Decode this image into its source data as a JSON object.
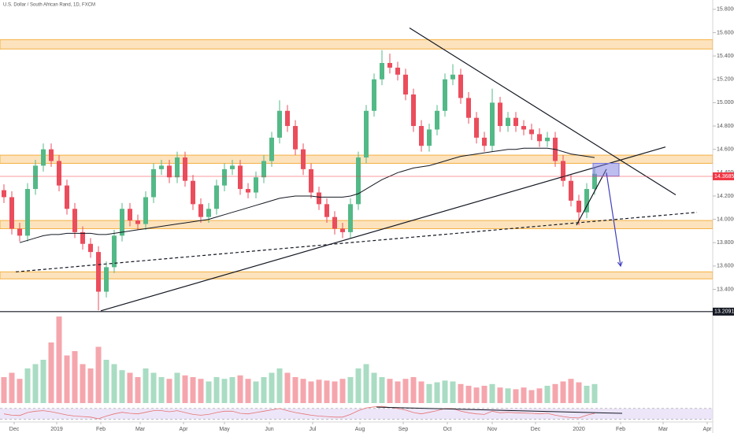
{
  "chart_data": {
    "type": "candlestick",
    "title": "U.S. Dollar / South African Rand, 1D, FXCM",
    "xlim": [
      -0.5,
      90.5
    ],
    "ylim": [
      13.1,
      15.9
    ],
    "yticks": [
      {
        "value": 13.4,
        "label": "13.40000"
      },
      {
        "value": 13.6,
        "label": "13.60000"
      },
      {
        "value": 13.8,
        "label": "13.80000"
      },
      {
        "value": 14,
        "label": "14.00000"
      },
      {
        "value": 14.2,
        "label": "14.20000"
      },
      {
        "value": 14.4,
        "label": "14.40000"
      },
      {
        "value": 14.6,
        "label": "14.60000"
      },
      {
        "value": 14.8,
        "label": "14.80000"
      },
      {
        "value": 15,
        "label": "15.00000"
      },
      {
        "value": 15.2,
        "label": "15.20000"
      },
      {
        "value": 15.4,
        "label": "15.40000"
      },
      {
        "value": 15.6,
        "label": "15.60000"
      },
      {
        "value": 15.8,
        "label": "15.80000"
      }
    ],
    "xticks": [
      {
        "value": 1.3,
        "label": "Dec"
      },
      {
        "value": 6.7,
        "label": "2019"
      },
      {
        "value": 12.3,
        "label": "Feb"
      },
      {
        "value": 17.3,
        "label": "Mar"
      },
      {
        "value": 22.8,
        "label": "Apr"
      },
      {
        "value": 28,
        "label": "May"
      },
      {
        "value": 33.7,
        "label": "Jun"
      },
      {
        "value": 39.2,
        "label": "Jul"
      },
      {
        "value": 45.2,
        "label": "Aug"
      },
      {
        "value": 50.7,
        "label": "Sep"
      },
      {
        "value": 56.3,
        "label": "Oct"
      },
      {
        "value": 62,
        "label": "Nov"
      },
      {
        "value": 67.5,
        "label": "Dec"
      },
      {
        "value": 73,
        "label": "2020"
      },
      {
        "value": 78.3,
        "label": "Feb"
      },
      {
        "value": 83.7,
        "label": "Mar"
      },
      {
        "value": 89.3,
        "label": "Apr"
      }
    ],
    "up_color": "#53b987",
    "down_color": "#eb4d5c",
    "series": {
      "open": [
        14.25,
        14.19,
        13.92,
        13.86,
        14.26,
        14.46,
        14.6,
        14.5,
        14.29,
        14.09,
        13.89,
        13.79,
        13.72,
        13.38,
        13.59,
        13.86,
        14.09,
        13.99,
        13.96,
        14.19,
        14.43,
        14.46,
        14.36,
        14.53,
        14.33,
        14.13,
        14.02,
        14.09,
        14.29,
        14.43,
        14.46,
        14.26,
        14.23,
        14.36,
        14.5,
        14.7,
        14.93,
        14.8,
        14.6,
        14.43,
        14.23,
        14.13,
        14.02,
        13.92,
        13.89,
        14.13,
        14.53,
        14.93,
        15.2,
        15.34,
        15.3,
        15.24,
        15.07,
        14.8,
        14.63,
        14.77,
        14.93,
        15.2,
        15.24,
        15.04,
        14.87,
        14.7,
        14.63,
        15.0,
        14.8,
        14.87,
        14.8,
        14.77,
        14.73,
        14.67,
        14.7,
        14.5,
        14.33,
        14.16,
        14.06,
        14.26
      ],
      "high": [
        14.3,
        14.24,
        13.97,
        14.31,
        14.51,
        14.65,
        14.65,
        14.55,
        14.34,
        14.14,
        13.94,
        13.84,
        13.77,
        13.64,
        13.91,
        14.14,
        14.14,
        14.04,
        14.24,
        14.48,
        14.51,
        14.51,
        14.58,
        14.58,
        14.38,
        14.18,
        14.14,
        14.34,
        14.48,
        14.51,
        14.51,
        14.31,
        14.41,
        14.55,
        14.75,
        15.02,
        14.98,
        14.85,
        14.65,
        14.48,
        14.28,
        14.18,
        14.07,
        13.97,
        14.18,
        14.58,
        14.98,
        15.25,
        15.45,
        15.42,
        15.35,
        15.29,
        15.12,
        14.85,
        14.82,
        14.98,
        15.25,
        15.33,
        15.29,
        15.09,
        14.92,
        14.75,
        15.12,
        15.05,
        14.92,
        14.92,
        14.85,
        14.82,
        14.78,
        14.75,
        14.75,
        14.55,
        14.38,
        14.21,
        14.31,
        14.44
      ],
      "low": [
        14.14,
        13.87,
        13.81,
        13.81,
        14.21,
        14.41,
        14.45,
        14.24,
        14.04,
        13.84,
        13.74,
        13.67,
        13.22,
        13.33,
        13.54,
        13.81,
        13.94,
        13.91,
        13.91,
        14.14,
        14.38,
        14.31,
        14.31,
        14.28,
        14.08,
        13.97,
        13.97,
        14.04,
        14.24,
        14.38,
        14.21,
        14.18,
        14.18,
        14.31,
        14.45,
        14.65,
        14.75,
        14.55,
        14.38,
        14.18,
        14.08,
        13.97,
        13.87,
        13.84,
        13.84,
        14.08,
        14.48,
        14.88,
        15.15,
        15.25,
        15.19,
        15.02,
        14.75,
        14.58,
        14.58,
        14.72,
        14.88,
        15.15,
        14.99,
        14.82,
        14.65,
        14.58,
        14.58,
        14.75,
        14.75,
        14.75,
        14.72,
        14.68,
        14.62,
        14.62,
        14.45,
        14.28,
        14.11,
        13.95,
        14.01,
        14.21
      ],
      "close": [
        14.19,
        13.92,
        13.86,
        14.26,
        14.46,
        14.6,
        14.5,
        14.29,
        14.09,
        13.89,
        13.79,
        13.72,
        13.38,
        13.59,
        13.86,
        14.09,
        13.99,
        13.96,
        14.19,
        14.43,
        14.46,
        14.36,
        14.53,
        14.33,
        14.13,
        14.02,
        14.09,
        14.29,
        14.43,
        14.46,
        14.26,
        14.23,
        14.36,
        14.5,
        14.7,
        14.93,
        14.8,
        14.6,
        14.43,
        14.23,
        14.13,
        14.02,
        13.92,
        13.89,
        14.13,
        14.53,
        14.93,
        15.2,
        15.34,
        15.3,
        15.24,
        15.07,
        14.8,
        14.63,
        14.77,
        14.93,
        15.2,
        15.24,
        15.04,
        14.87,
        14.7,
        14.63,
        15.0,
        14.8,
        14.87,
        14.8,
        14.77,
        14.73,
        14.67,
        14.7,
        14.5,
        14.33,
        14.16,
        14.06,
        14.26,
        14.39
      ]
    },
    "ma": {
      "color": "#131722",
      "values": [
        null,
        null,
        13.8,
        13.82,
        13.84,
        13.86,
        13.87,
        13.87,
        13.88,
        13.88,
        13.88,
        13.88,
        13.87,
        13.87,
        13.88,
        13.89,
        13.9,
        13.91,
        13.92,
        13.93,
        13.94,
        13.95,
        13.96,
        13.97,
        13.98,
        13.99,
        14.0,
        14.02,
        14.04,
        14.06,
        14.08,
        14.1,
        14.12,
        14.14,
        14.16,
        14.18,
        14.19,
        14.2,
        14.2,
        14.2,
        14.19,
        14.19,
        14.19,
        14.19,
        14.2,
        14.22,
        14.26,
        14.3,
        14.34,
        14.37,
        14.4,
        14.42,
        14.44,
        14.45,
        14.46,
        14.48,
        14.5,
        14.52,
        14.54,
        14.55,
        14.56,
        14.57,
        14.58,
        14.59,
        14.6,
        14.6,
        14.61,
        14.61,
        14.61,
        14.61,
        14.6,
        14.58,
        14.56,
        14.55,
        14.54,
        14.53
      ]
    },
    "volume": {
      "ylim": [
        0,
        120
      ],
      "values": [
        30,
        35,
        28,
        40,
        45,
        50,
        70,
        100,
        55,
        60,
        45,
        40,
        65,
        50,
        45,
        38,
        35,
        30,
        40,
        35,
        30,
        28,
        35,
        32,
        30,
        28,
        25,
        30,
        28,
        30,
        32,
        28,
        25,
        30,
        35,
        40,
        35,
        30,
        28,
        25,
        27,
        26,
        25,
        28,
        30,
        40,
        45,
        35,
        30,
        28,
        25,
        28,
        30,
        25,
        22,
        24,
        26,
        25,
        22,
        20,
        18,
        20,
        22,
        18,
        17,
        16,
        18,
        15,
        17,
        20,
        22,
        25,
        28,
        24,
        20,
        22
      ]
    },
    "rsi": {
      "ylim": [
        20,
        90
      ],
      "band": [
        30,
        70
      ],
      "color": "#e57373",
      "values": [
        50,
        45,
        44,
        55,
        60,
        62,
        58,
        52,
        46,
        42,
        40,
        38,
        32,
        42,
        50,
        56,
        52,
        50,
        56,
        62,
        62,
        58,
        62,
        55,
        48,
        45,
        48,
        55,
        60,
        60,
        52,
        50,
        55,
        60,
        65,
        70,
        62,
        55,
        50,
        45,
        42,
        40,
        38,
        38,
        48,
        62,
        72,
        76,
        78,
        74,
        70,
        64,
        55,
        50,
        56,
        62,
        70,
        70,
        60,
        54,
        50,
        48,
        60,
        54,
        56,
        54,
        53,
        52,
        50,
        52,
        45,
        40,
        36,
        35,
        45,
        52
      ],
      "trendline": [
        [
          47.3,
          75
        ],
        [
          78.5,
          52
        ]
      ]
    },
    "zone_color": "#f5b041",
    "zones": [
      [
        15.54,
        15.46
      ],
      [
        14.55,
        14.48
      ],
      [
        13.99,
        13.92
      ],
      [
        13.55,
        13.49
      ]
    ],
    "levels": [
      {
        "value": 13.20915,
        "label": "13.20915",
        "color": "#131722"
      },
      {
        "value": 14.3685,
        "label": "14.36850",
        "color": "#f23645"
      }
    ],
    "trendlines": [
      {
        "points": [
          [
            51.5,
            15.64
          ],
          [
            85.3,
            14.21
          ]
        ],
        "dashed": false
      },
      {
        "points": [
          [
            12.3,
            13.2159
          ],
          [
            84,
            14.62
          ]
        ],
        "dashed": false
      },
      {
        "points": [
          [
            1.5,
            13.55
          ],
          [
            88,
            14.06
          ]
        ],
        "dashed": true
      },
      {
        "points": [
          [
            72.7,
            13.95
          ],
          [
            76.5,
            14.43
          ]
        ],
        "dashed": false
      }
    ],
    "arrow": {
      "color": "#3f3fbf",
      "points": [
        [
          76.5,
          14.4
        ],
        [
          78.3,
          13.6
        ]
      ]
    },
    "box": {
      "color": "#7b7bdf",
      "x": [
        74.8,
        78.1
      ],
      "y": [
        14.37,
        14.48
      ]
    }
  }
}
